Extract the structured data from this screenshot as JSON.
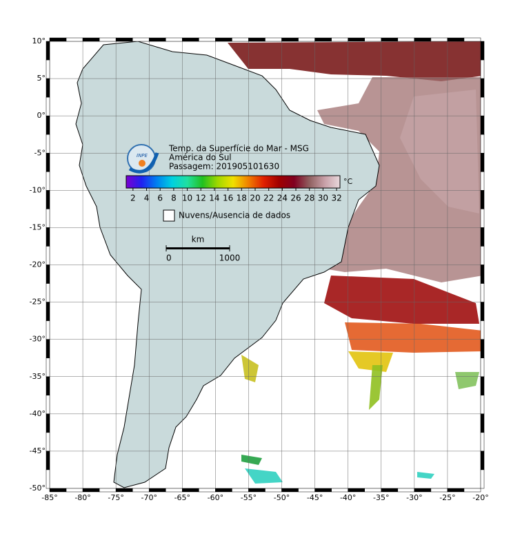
{
  "map": {
    "title_lines": [
      "Temp. da Superfície do Mar - MSG",
      "América do Sul",
      "Passagem: 201905101630"
    ],
    "logo_text": "INPE",
    "colorbar": {
      "lim": [
        1,
        32.5
      ],
      "ticks": [
        2,
        4,
        6,
        8,
        10,
        12,
        14,
        16,
        18,
        20,
        22,
        24,
        26,
        28,
        30,
        32
      ],
      "unit": "°C",
      "colors": [
        "#7a00d0",
        "#2020f0",
        "#0080f0",
        "#00d0e0",
        "#20e0a0",
        "#20c020",
        "#a0d800",
        "#f0e000",
        "#f08000",
        "#e02000",
        "#a00000",
        "#800020",
        "#906060",
        "#c8a0a8",
        "#e8d8dc"
      ]
    },
    "legend": "Nuvens/Ausencia de dados",
    "scale": {
      "unit": "km",
      "ticks": [
        0,
        1000
      ]
    },
    "xlim": [
      -85,
      -20
    ],
    "xticks": [
      {
        "value": -85,
        "label": "-85°"
      },
      {
        "value": -80,
        "label": "-80°"
      },
      {
        "value": -75,
        "label": "-75°"
      },
      {
        "value": -70,
        "label": "-70°"
      },
      {
        "value": -65,
        "label": "-65°"
      },
      {
        "value": -60,
        "label": "-60°"
      },
      {
        "value": -55,
        "label": "-55°"
      },
      {
        "value": -50,
        "label": "-50°"
      },
      {
        "value": -45,
        "label": "-45°"
      },
      {
        "value": -40,
        "label": "-40°"
      },
      {
        "value": -35,
        "label": "-35°"
      },
      {
        "value": -30,
        "label": "-30°"
      },
      {
        "value": -25,
        "label": "-25°"
      },
      {
        "value": -20,
        "label": "-20°"
      }
    ],
    "ylim": [
      -50,
      10
    ],
    "yticks": [
      {
        "value": 10,
        "label": "10°"
      },
      {
        "value": 5,
        "label": "5°"
      },
      {
        "value": 0,
        "label": "0°"
      },
      {
        "value": -5,
        "label": "-5°"
      },
      {
        "value": -10,
        "label": "-10°"
      },
      {
        "value": -15,
        "label": "-15°"
      },
      {
        "value": -20,
        "label": "-20°"
      },
      {
        "value": -25,
        "label": "-25°"
      },
      {
        "value": -30,
        "label": "-30°"
      },
      {
        "value": -35,
        "label": "-35°"
      },
      {
        "value": -40,
        "label": "-40°"
      },
      {
        "value": -45,
        "label": "-45°"
      },
      {
        "value": -50,
        "label": "-50°"
      }
    ]
  }
}
